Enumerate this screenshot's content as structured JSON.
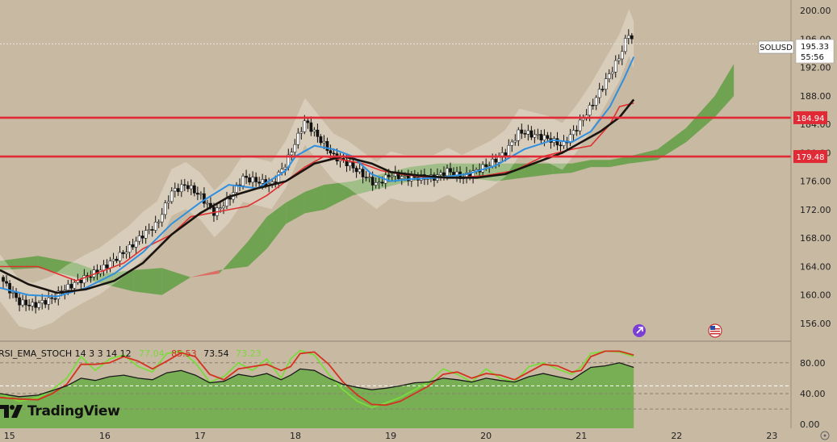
{
  "symbol": "SOLUSD",
  "price_tag": {
    "price": "195.33",
    "countdown": "55:56"
  },
  "brand": {
    "name": "TradingView",
    "logo_icon": "tradingview-logo-icon"
  },
  "colors": {
    "background": "#c8b9a2",
    "candle": "#111111",
    "ema_fast": "#2f8fe0",
    "ema_slow": "#1a1410",
    "baseline": "#e03030",
    "horizontal_level": "#e02a35",
    "cloud_bull": "#5f9e43",
    "cloud_bear": "#e0605a",
    "stoch_k": "#7adc3a",
    "stoch_d": "#d3321e",
    "rsi": "#1a1a1a",
    "rsi_fill": "#6fae4c"
  },
  "chart_data": [
    {
      "type": "candlestick",
      "symbol": "SOLUSD",
      "x_ticks": [
        "15",
        "16",
        "17",
        "18",
        "19",
        "20",
        "21",
        "22",
        "23"
      ],
      "y_ticks": [
        "156.00",
        "160.00",
        "164.00",
        "168.00",
        "172.00",
        "176.00",
        "180.00",
        "184.00",
        "188.00",
        "192.00",
        "196.00",
        "200.00"
      ],
      "y_range": [
        153.5,
        201.5
      ],
      "x_range": [
        14.9,
        23.2
      ],
      "last_price": 195.33,
      "horizontal_levels": [
        {
          "label": "184.94",
          "value": 184.94
        },
        {
          "label": "179.48",
          "value": 179.48
        }
      ],
      "series": [
        {
          "kind": "close",
          "x": [
            14.9,
            15.1,
            15.25,
            15.45,
            15.6,
            15.8,
            15.95,
            16.1,
            16.25,
            16.4,
            16.55,
            16.7,
            16.85,
            17.0,
            17.15,
            17.3,
            17.45,
            17.6,
            17.75,
            17.9,
            18.0,
            18.1,
            18.25,
            18.4,
            18.55,
            18.7,
            18.85,
            19.0,
            19.15,
            19.3,
            19.45,
            19.6,
            19.75,
            19.9,
            20.05,
            20.2,
            20.35,
            20.5,
            20.65,
            20.8,
            20.95,
            21.1,
            21.25,
            21.4,
            21.5,
            21.55
          ],
          "y": [
            162.5,
            159.0,
            158.5,
            159.5,
            161.0,
            162.5,
            163.5,
            165.0,
            166.5,
            168.5,
            170.0,
            174.5,
            175.5,
            174.0,
            171.5,
            173.5,
            176.5,
            176.0,
            175.5,
            178.5,
            181.5,
            184.5,
            182.0,
            179.5,
            178.5,
            177.0,
            175.5,
            177.0,
            176.5,
            176.5,
            176.5,
            177.5,
            176.5,
            177.5,
            178.5,
            180.0,
            183.0,
            182.5,
            182.0,
            181.0,
            183.5,
            186.5,
            190.0,
            193.5,
            197.0,
            195.3
          ]
        },
        {
          "kind": "ema_fast",
          "x": [
            14.9,
            15.2,
            15.5,
            15.8,
            16.1,
            16.4,
            16.7,
            17.0,
            17.3,
            17.6,
            17.9,
            18.0,
            18.2,
            18.4,
            18.6,
            18.8,
            19.0,
            19.2,
            19.5,
            19.8,
            20.1,
            20.4,
            20.7,
            20.9,
            21.1,
            21.3,
            21.45,
            21.55
          ],
          "y": [
            161.0,
            160.0,
            159.8,
            161.0,
            163.0,
            166.0,
            170.0,
            173.0,
            175.5,
            175.0,
            177.5,
            179.5,
            181.0,
            180.5,
            179.5,
            177.0,
            176.0,
            176.3,
            176.5,
            177.0,
            178.2,
            180.5,
            181.8,
            181.5,
            183.0,
            186.5,
            190.5,
            193.5
          ]
        },
        {
          "kind": "ema_slow",
          "x": [
            14.9,
            15.2,
            15.5,
            15.8,
            16.1,
            16.4,
            16.7,
            17.0,
            17.3,
            17.6,
            17.9,
            18.2,
            18.5,
            18.8,
            19.0,
            19.3,
            19.6,
            19.9,
            20.2,
            20.5,
            20.8,
            21.0,
            21.2,
            21.4,
            21.55
          ],
          "y": [
            163.5,
            161.5,
            160.3,
            160.8,
            162.0,
            164.5,
            168.5,
            171.5,
            173.8,
            175.0,
            176.0,
            178.5,
            179.5,
            178.5,
            177.3,
            176.8,
            176.5,
            176.5,
            177.0,
            178.5,
            180.0,
            181.5,
            183.0,
            185.0,
            187.5
          ]
        },
        {
          "kind": "baseline",
          "x": [
            14.9,
            15.3,
            15.5,
            15.7,
            15.9,
            16.2,
            16.4,
            16.7,
            16.9,
            17.1,
            17.3,
            17.5,
            17.7,
            17.9,
            18.1,
            18.3,
            18.5,
            18.7,
            18.9,
            19.1,
            19.4,
            19.7,
            20.0,
            20.3,
            20.6,
            20.9,
            21.1,
            21.3,
            21.4,
            21.55
          ],
          "y": [
            164.0,
            164.0,
            163.0,
            162.0,
            163.0,
            164.5,
            166.5,
            168.5,
            171.0,
            171.5,
            172.0,
            172.5,
            174.0,
            176.0,
            178.0,
            179.5,
            179.0,
            178.5,
            177.5,
            177.0,
            176.5,
            176.5,
            176.8,
            177.5,
            179.5,
            180.5,
            181.0,
            184.0,
            186.5,
            187.0
          ]
        },
        {
          "kind": "cloud_upper",
          "x": [
            14.9,
            15.3,
            15.7,
            16.0,
            16.3,
            16.6,
            16.9,
            17.2,
            17.5,
            17.7,
            17.9,
            18.1,
            18.3,
            18.6,
            18.9,
            19.2,
            19.5,
            19.8,
            20.1,
            20.4,
            20.7,
            20.9,
            21.1,
            21.3,
            21.5,
            21.8,
            22.1,
            22.4,
            22.6
          ],
          "y": [
            164.8,
            165.5,
            164.5,
            163.0,
            163.5,
            163.8,
            162.5,
            163.0,
            167.5,
            171.0,
            173.0,
            174.5,
            175.5,
            176.0,
            177.0,
            178.0,
            178.5,
            178.5,
            178.5,
            178.5,
            178.5,
            178.5,
            179.0,
            179.0,
            179.5,
            180.5,
            183.5,
            188.0,
            192.5
          ]
        },
        {
          "kind": "cloud_lower",
          "x": [
            14.9,
            15.3,
            15.7,
            16.0,
            16.3,
            16.6,
            16.9,
            17.2,
            17.5,
            17.7,
            17.9,
            18.1,
            18.3,
            18.6,
            18.9,
            19.2,
            19.5,
            19.8,
            20.1,
            20.4,
            20.7,
            20.9,
            21.1,
            21.3,
            21.5,
            21.8,
            22.1,
            22.4,
            22.6
          ],
          "y": [
            163.5,
            163.8,
            162.5,
            161.5,
            160.5,
            160.0,
            162.5,
            163.5,
            164.0,
            166.5,
            170.0,
            171.5,
            172.0,
            174.0,
            175.0,
            176.0,
            176.5,
            176.5,
            176.0,
            176.5,
            177.0,
            177.2,
            178.0,
            178.0,
            178.5,
            179.0,
            181.5,
            185.0,
            188.0
          ]
        }
      ]
    },
    {
      "type": "line",
      "indicator": "RSI_EMA_STOCH",
      "label": "RSI_EMA_STOCH 14 3 3 14 12",
      "values_display": [
        "77.04",
        "85.53",
        "73.54",
        "73.23"
      ],
      "y_ticks": [
        "0.00",
        "40.00",
        "80.00"
      ],
      "y_range": [
        -5,
        108
      ],
      "x_range": [
        14.9,
        23.2
      ],
      "series": [
        {
          "kind": "stoch_k",
          "x": [
            14.9,
            15.1,
            15.3,
            15.45,
            15.6,
            15.75,
            15.9,
            16.05,
            16.2,
            16.35,
            16.5,
            16.65,
            16.8,
            16.95,
            17.1,
            17.25,
            17.4,
            17.55,
            17.7,
            17.85,
            17.95,
            18.05,
            18.2,
            18.35,
            18.5,
            18.65,
            18.8,
            18.95,
            19.1,
            19.25,
            19.4,
            19.55,
            19.7,
            19.85,
            20.0,
            20.15,
            20.3,
            20.45,
            20.6,
            20.75,
            20.9,
            21.0,
            21.1,
            21.25,
            21.4,
            21.55
          ],
          "y": [
            40,
            30,
            35,
            45,
            60,
            88,
            70,
            85,
            90,
            75,
            68,
            92,
            95,
            80,
            55,
            62,
            80,
            70,
            85,
            60,
            85,
            96,
            90,
            65,
            45,
            30,
            22,
            28,
            35,
            45,
            55,
            72,
            65,
            55,
            72,
            60,
            55,
            75,
            80,
            72,
            65,
            75,
            92,
            95,
            94,
            88
          ]
        },
        {
          "kind": "stoch_d",
          "x": [
            14.9,
            15.1,
            15.3,
            15.45,
            15.6,
            15.75,
            15.9,
            16.05,
            16.2,
            16.35,
            16.5,
            16.65,
            16.8,
            16.95,
            17.1,
            17.25,
            17.4,
            17.55,
            17.7,
            17.85,
            17.95,
            18.05,
            18.2,
            18.35,
            18.5,
            18.65,
            18.8,
            18.95,
            19.1,
            19.25,
            19.4,
            19.55,
            19.7,
            19.85,
            20.0,
            20.15,
            20.3,
            20.45,
            20.6,
            20.75,
            20.9,
            21.0,
            21.1,
            21.25,
            21.4,
            21.55
          ],
          "y": [
            35,
            33,
            32,
            40,
            52,
            78,
            78,
            80,
            88,
            82,
            72,
            82,
            93,
            88,
            65,
            58,
            72,
            75,
            78,
            70,
            75,
            92,
            94,
            78,
            55,
            38,
            26,
            25,
            30,
            40,
            50,
            65,
            68,
            60,
            66,
            64,
            58,
            68,
            78,
            76,
            68,
            70,
            88,
            95,
            95,
            90
          ]
        },
        {
          "kind": "rsi",
          "x": [
            14.9,
            15.1,
            15.3,
            15.45,
            15.6,
            15.75,
            15.9,
            16.05,
            16.2,
            16.35,
            16.5,
            16.65,
            16.8,
            16.95,
            17.1,
            17.25,
            17.4,
            17.55,
            17.7,
            17.85,
            17.95,
            18.05,
            18.2,
            18.35,
            18.5,
            18.65,
            18.8,
            18.95,
            19.1,
            19.25,
            19.4,
            19.55,
            19.7,
            19.85,
            20.0,
            20.15,
            20.3,
            20.45,
            20.6,
            20.75,
            20.9,
            21.0,
            21.1,
            21.25,
            21.4,
            21.55
          ],
          "y": [
            40,
            36,
            38,
            44,
            50,
            60,
            57,
            62,
            64,
            60,
            58,
            67,
            70,
            64,
            54,
            56,
            65,
            62,
            66,
            58,
            64,
            72,
            70,
            60,
            52,
            48,
            45,
            47,
            50,
            54,
            55,
            60,
            58,
            55,
            60,
            57,
            55,
            62,
            66,
            62,
            58,
            66,
            74,
            76,
            80,
            74
          ]
        }
      ]
    }
  ]
}
